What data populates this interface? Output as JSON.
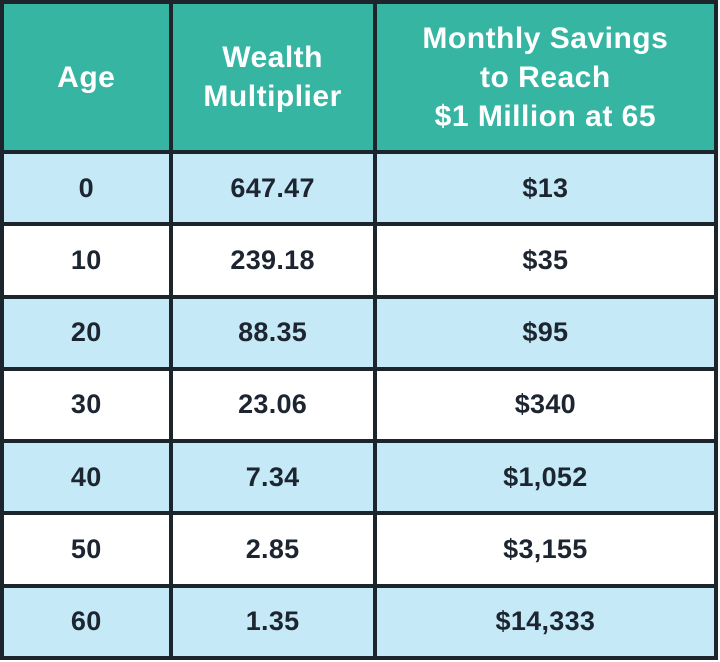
{
  "colors": {
    "header_bg": "#36b5a2",
    "row_alt_bg": "#c5e9f7",
    "row_bg": "#ffffff",
    "border": "#1c242c",
    "header_text": "#ffffff",
    "cell_text": "#1c2530"
  },
  "chart_data": {
    "type": "table",
    "columns": [
      "Age",
      "Wealth Multiplier",
      "Monthly Savings to Reach $1 Million at 65"
    ],
    "header_lines": [
      [
        "Age"
      ],
      [
        "Wealth",
        "Multiplier"
      ],
      [
        "Monthly Savings",
        "to Reach",
        "$1 Million at 65"
      ]
    ],
    "rows": [
      [
        "0",
        "647.47",
        "$13"
      ],
      [
        "10",
        "239.18",
        "$35"
      ],
      [
        "20",
        "88.35",
        "$95"
      ],
      [
        "30",
        "23.06",
        "$340"
      ],
      [
        "40",
        "7.34",
        "$1,052"
      ],
      [
        "50",
        "2.85",
        "$3,155"
      ],
      [
        "60",
        "1.35",
        "$14,333"
      ]
    ]
  }
}
